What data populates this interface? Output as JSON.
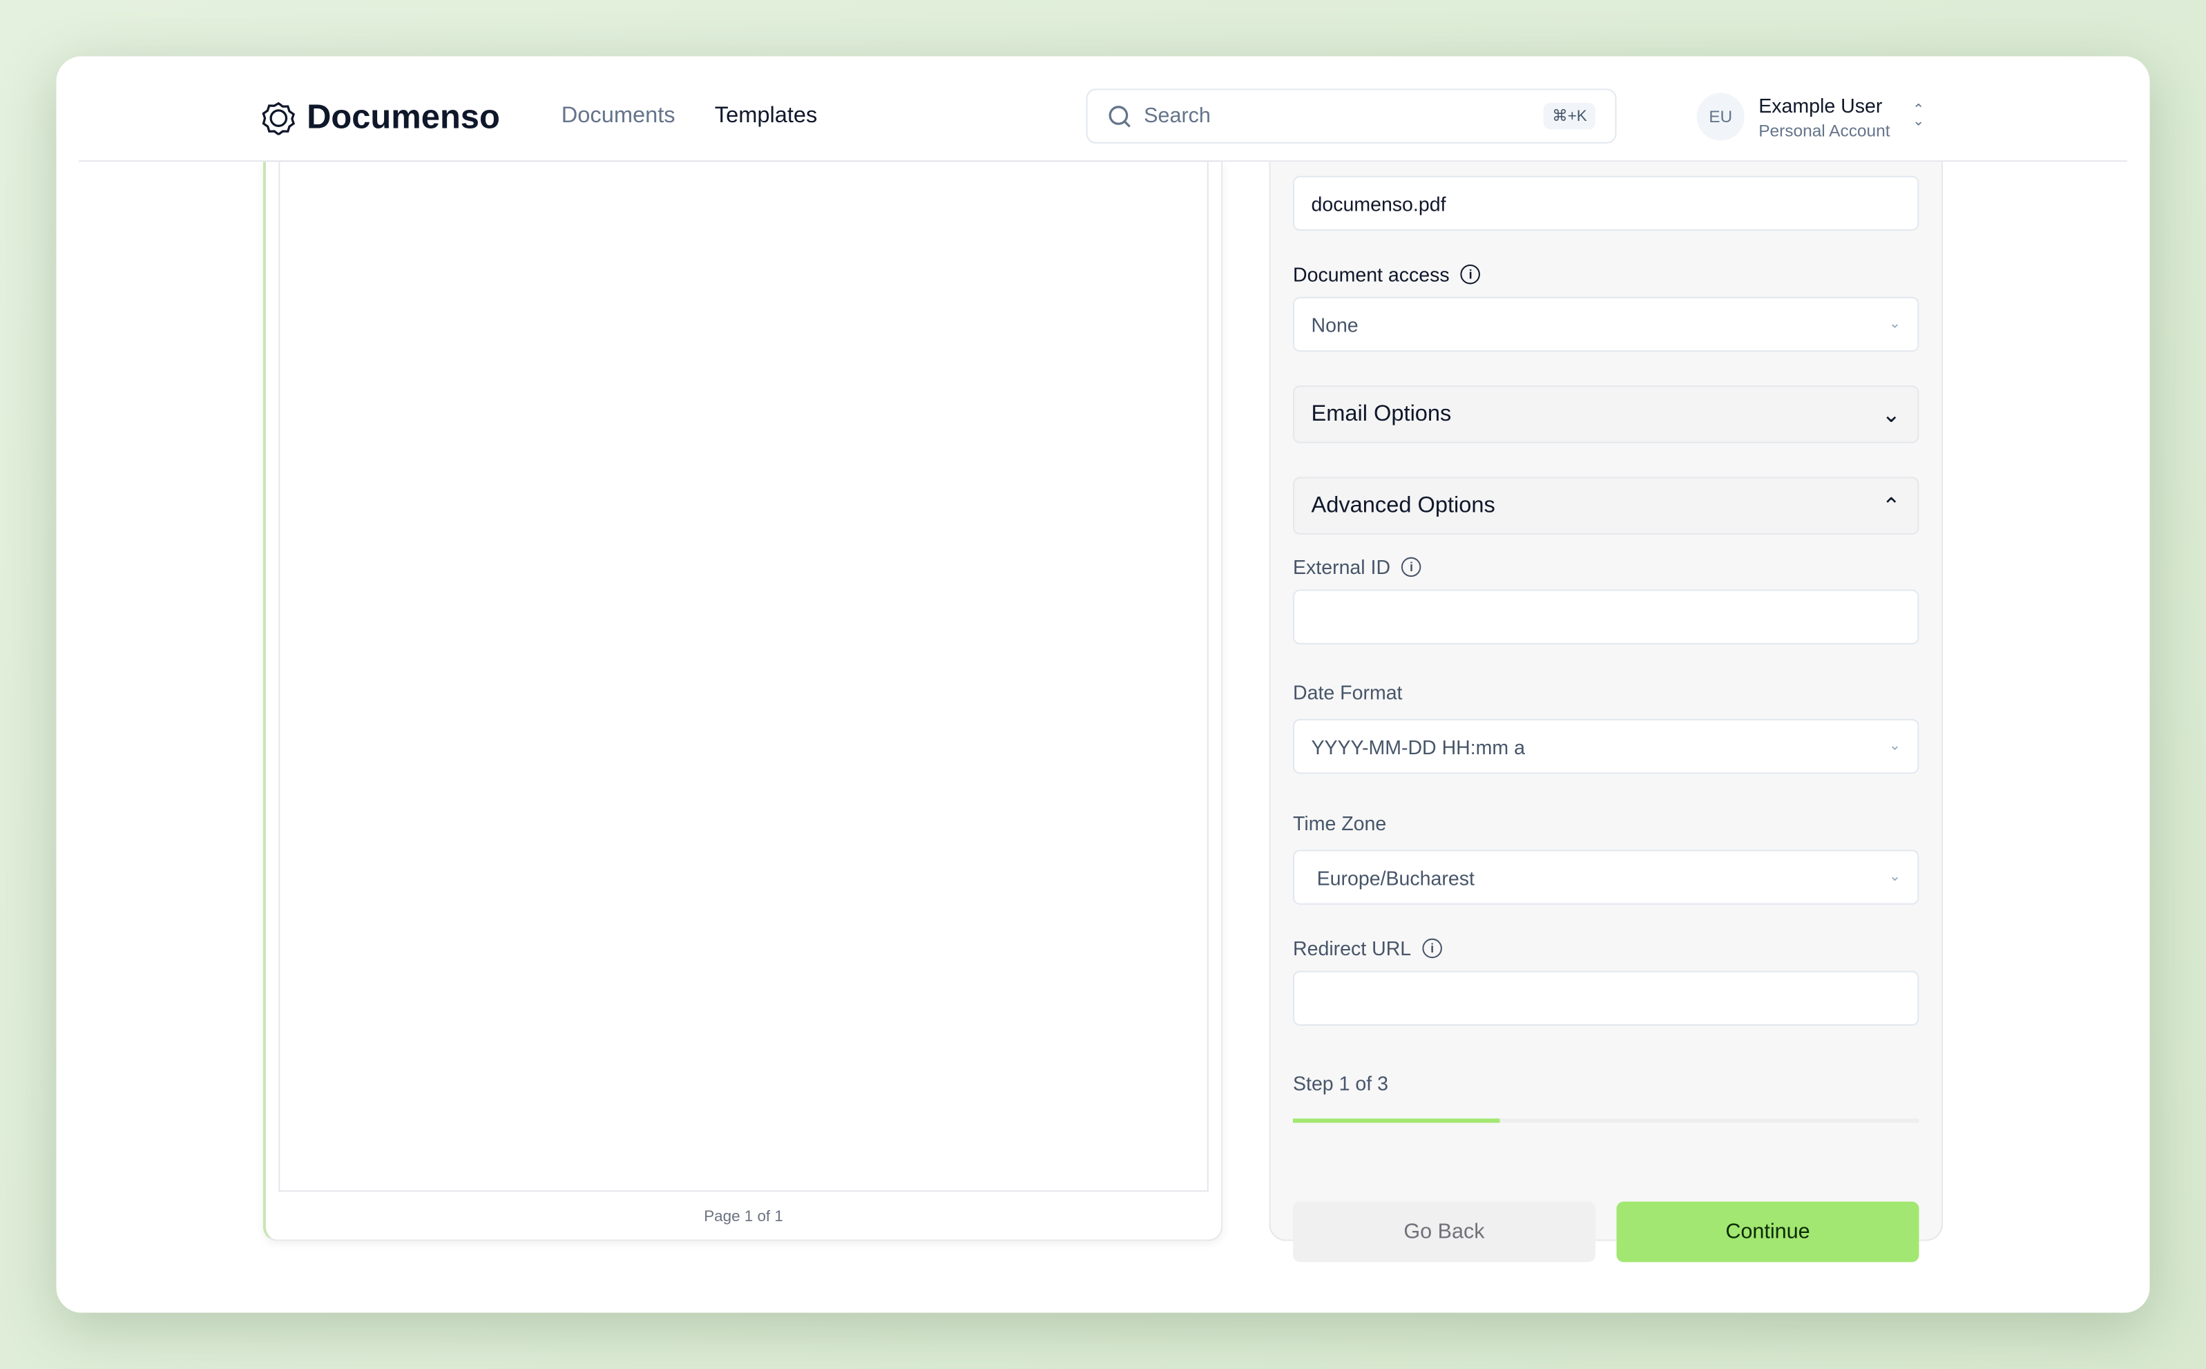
{
  "header": {
    "brand": "Documenso",
    "nav": [
      "Documents",
      "Templates"
    ],
    "search_placeholder": "Search",
    "shortcut": "⌘+K",
    "user": {
      "initials": "EU",
      "name": "Example User",
      "account": "Personal Account"
    }
  },
  "document": {
    "page_label": "Page 1 of 1"
  },
  "form": {
    "title_value": "documenso.pdf",
    "access_label": "Document access",
    "access_value": "None",
    "email_options": "Email Options",
    "advanced_options": "Advanced Options",
    "external_id_label": "External ID",
    "external_id_value": "",
    "date_format_label": "Date Format",
    "date_format_value": "YYYY-MM-DD HH:mm a",
    "timezone_label": "Time Zone",
    "timezone_value": "Europe/Bucharest",
    "redirect_label": "Redirect URL",
    "redirect_value": "",
    "step_label": "Step 1 of 3",
    "progress_percent": 33,
    "back": "Go Back",
    "continue": "Continue"
  },
  "colors": {
    "accent": "#a2e771",
    "progress": "#a2e771"
  }
}
